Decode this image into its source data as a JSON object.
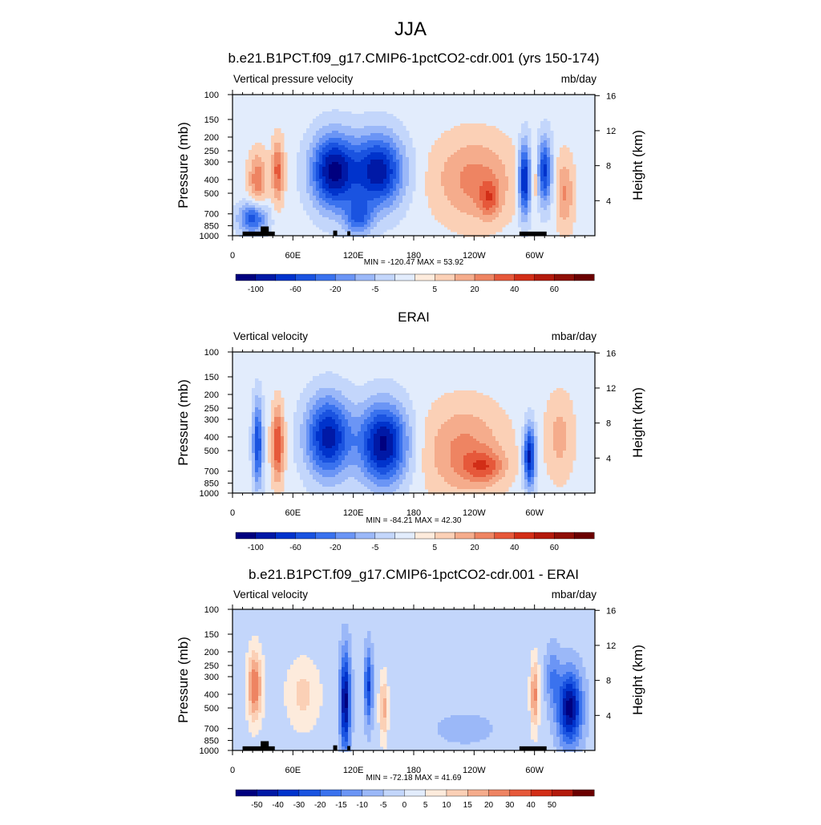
{
  "figure_title": "JJA",
  "chart_data": [
    {
      "type": "heatmap",
      "title": "b.e21.B1PCT.f09_g17.CMIP6-1pctCO2-cdr.001 (yrs 150-174)",
      "left_label": "Vertical pressure velocity",
      "units": "mb/day",
      "ylabel": "Pressure (mb)",
      "ylabel_right": "Height (km)",
      "x_ticks": [
        "0",
        "60E",
        "120E",
        "180",
        "120W",
        "60W"
      ],
      "x_tick_lon": [
        0,
        60,
        120,
        180,
        240,
        300
      ],
      "xlim": [
        0,
        360
      ],
      "y_ticks": [
        "100",
        "150",
        "200",
        "250",
        "300",
        "400",
        "500",
        "700",
        "850",
        "1000"
      ],
      "y_tick_values": [
        100,
        150,
        200,
        250,
        300,
        400,
        500,
        700,
        850,
        1000
      ],
      "ylim": [
        1000,
        100
      ],
      "y_scale": "log",
      "height_ticks": [
        "4",
        "8",
        "12",
        "16"
      ],
      "height_tick_values": [
        4,
        8,
        12,
        16
      ],
      "stats": "MIN = -120.47  MAX =  53.92",
      "colorbar_labels": [
        "-100",
        "-60",
        "-20",
        "-5",
        "5",
        "20",
        "40",
        "60"
      ],
      "colorbar_colors": [
        "#00007f",
        "#0019a6",
        "#0033cc",
        "#1a53e0",
        "#3a72ee",
        "#6b95f5",
        "#9bb8f8",
        "#c3d6fb",
        "#e2ecfc",
        "#fdebdc",
        "#fbd0b6",
        "#f5ac8c",
        "#ee8462",
        "#e6583a",
        "#d22e17",
        "#b31a0c",
        "#8f0f06",
        "#6b0000"
      ],
      "fields": [
        {
          "lon": 25,
          "p": 400,
          "w": 9,
          "dp": 0.45,
          "value": 25
        },
        {
          "lon": 45,
          "p": 350,
          "w": 6,
          "dp": 0.5,
          "value": 30
        },
        {
          "lon": 20,
          "p": 750,
          "w": 14,
          "dp": 0.25,
          "value": -40
        },
        {
          "lon": 100,
          "p": 350,
          "w": 22,
          "dp": 0.6,
          "value": -60
        },
        {
          "lon": 145,
          "p": 350,
          "w": 25,
          "dp": 0.6,
          "value": -55
        },
        {
          "lon": 125,
          "p": 750,
          "w": 14,
          "dp": 0.3,
          "value": -30
        },
        {
          "lon": 240,
          "p": 400,
          "w": 40,
          "dp": 0.7,
          "value": 22
        },
        {
          "lon": 255,
          "p": 550,
          "w": 10,
          "dp": 0.3,
          "value": 20
        },
        {
          "lon": 290,
          "p": 400,
          "w": 6,
          "dp": 0.6,
          "value": -55
        },
        {
          "lon": 310,
          "p": 350,
          "w": 7,
          "dp": 0.55,
          "value": -45
        },
        {
          "lon": 300,
          "p": 400,
          "w": 3,
          "dp": 0.4,
          "value": 15
        },
        {
          "lon": 330,
          "p": 500,
          "w": 9,
          "dp": 0.6,
          "value": 20
        }
      ],
      "topography": [
        {
          "lon0": 10,
          "lon1": 42,
          "p": 935
        },
        {
          "lon0": 28,
          "lon1": 36,
          "p": 860
        },
        {
          "lon0": 100,
          "lon1": 104,
          "p": 920
        },
        {
          "lon0": 114,
          "lon1": 117,
          "p": 930
        },
        {
          "lon0": 285,
          "lon1": 312,
          "p": 935
        }
      ]
    },
    {
      "type": "heatmap",
      "title": "ERAI",
      "left_label": "Vertical velocity",
      "units": "mbar/day",
      "ylabel": "Pressure (mb)",
      "ylabel_right": "Height (km)",
      "x_ticks": [
        "0",
        "60E",
        "120E",
        "180",
        "120W",
        "60W"
      ],
      "x_tick_lon": [
        0,
        60,
        120,
        180,
        240,
        300
      ],
      "xlim": [
        0,
        360
      ],
      "y_ticks": [
        "100",
        "150",
        "200",
        "250",
        "300",
        "400",
        "500",
        "700",
        "850",
        "1000"
      ],
      "y_tick_values": [
        100,
        150,
        200,
        250,
        300,
        400,
        500,
        700,
        850,
        1000
      ],
      "ylim": [
        1000,
        100
      ],
      "y_scale": "log",
      "height_ticks": [
        "4",
        "8",
        "12",
        "16"
      ],
      "height_tick_values": [
        4,
        8,
        12,
        16
      ],
      "stats": "MIN = -84.21  MAX =  42.30",
      "colorbar_labels": [
        "-100",
        "-60",
        "-20",
        "-5",
        "5",
        "20",
        "40",
        "60"
      ],
      "colorbar_colors": [
        "#00007f",
        "#0019a6",
        "#0033cc",
        "#1a53e0",
        "#3a72ee",
        "#6b95f5",
        "#9bb8f8",
        "#c3d6fb",
        "#e2ecfc",
        "#fdebdc",
        "#fbd0b6",
        "#f5ac8c",
        "#ee8462",
        "#e6583a",
        "#d22e17",
        "#b31a0c",
        "#8f0f06",
        "#6b0000"
      ],
      "fields": [
        {
          "lon": 25,
          "p": 450,
          "w": 5,
          "dp": 0.7,
          "value": -35
        },
        {
          "lon": 45,
          "p": 450,
          "w": 6,
          "dp": 0.6,
          "value": 30
        },
        {
          "lon": 95,
          "p": 400,
          "w": 22,
          "dp": 0.65,
          "value": -45
        },
        {
          "lon": 150,
          "p": 450,
          "w": 24,
          "dp": 0.65,
          "value": -50
        },
        {
          "lon": 230,
          "p": 500,
          "w": 40,
          "dp": 0.75,
          "value": 18
        },
        {
          "lon": 250,
          "p": 650,
          "w": 20,
          "dp": 0.25,
          "value": 18
        },
        {
          "lon": 295,
          "p": 550,
          "w": 6,
          "dp": 0.5,
          "value": -45
        },
        {
          "lon": 325,
          "p": 400,
          "w": 14,
          "dp": 0.7,
          "value": 12
        }
      ],
      "topography": []
    },
    {
      "type": "heatmap",
      "title": "b.e21.B1PCT.f09_g17.CMIP6-1pctCO2-cdr.001 - ERAI",
      "left_label": "Vertical velocity",
      "units": "mbar/day",
      "ylabel": "Pressure (mb)",
      "ylabel_right": "Height (km)",
      "x_ticks": [
        "0",
        "60E",
        "120E",
        "180",
        "120W",
        "60W"
      ],
      "x_tick_lon": [
        0,
        60,
        120,
        180,
        240,
        300
      ],
      "xlim": [
        0,
        360
      ],
      "y_ticks": [
        "100",
        "150",
        "200",
        "250",
        "300",
        "400",
        "500",
        "700",
        "850",
        "1000"
      ],
      "y_tick_values": [
        100,
        150,
        200,
        250,
        300,
        400,
        500,
        700,
        850,
        1000
      ],
      "ylim": [
        1000,
        100
      ],
      "y_scale": "log",
      "height_ticks": [
        "4",
        "8",
        "12",
        "16"
      ],
      "height_tick_values": [
        4,
        8,
        12,
        16
      ],
      "stats": "MIN = -72.18  MAX =  41.69",
      "colorbar_labels": [
        "-50",
        "-40",
        "-30",
        "-20",
        "-15",
        "-10",
        "-5",
        "0",
        "5",
        "10",
        "15",
        "20",
        "30",
        "40",
        "50"
      ],
      "colorbar_colors": [
        "#00007f",
        "#0019a6",
        "#0033cc",
        "#1a53e0",
        "#3a72ee",
        "#6b95f5",
        "#9bb8f8",
        "#c3d6fb",
        "#e2ecfc",
        "#fdebdc",
        "#fbd0b6",
        "#f5ac8c",
        "#ee8462",
        "#e6583a",
        "#d22e17",
        "#b31a0c",
        "#6b0000"
      ],
      "fields": [
        {
          "lon": 22,
          "p": 350,
          "w": 7,
          "dp": 0.55,
          "value": 30
        },
        {
          "lon": 70,
          "p": 400,
          "w": 16,
          "dp": 0.55,
          "value": 12
        },
        {
          "lon": 112,
          "p": 450,
          "w": 5,
          "dp": 0.8,
          "value": -45
        },
        {
          "lon": 135,
          "p": 350,
          "w": 4,
          "dp": 0.6,
          "value": -30
        },
        {
          "lon": 150,
          "p": 500,
          "w": 4,
          "dp": 0.5,
          "value": 20
        },
        {
          "lon": 230,
          "p": 700,
          "w": 35,
          "dp": 0.3,
          "value": -6
        },
        {
          "lon": 300,
          "p": 400,
          "w": 4,
          "dp": 0.55,
          "value": 25
        },
        {
          "lon": 335,
          "p": 500,
          "w": 12,
          "dp": 0.6,
          "value": -45
        },
        {
          "lon": 318,
          "p": 300,
          "w": 7,
          "dp": 0.5,
          "value": -15
        }
      ],
      "topography": [
        {
          "lon0": 10,
          "lon1": 42,
          "p": 935
        },
        {
          "lon0": 28,
          "lon1": 36,
          "p": 860
        },
        {
          "lon0": 100,
          "lon1": 104,
          "p": 920
        },
        {
          "lon0": 114,
          "lon1": 117,
          "p": 930
        },
        {
          "lon0": 285,
          "lon1": 312,
          "p": 935
        }
      ]
    }
  ]
}
